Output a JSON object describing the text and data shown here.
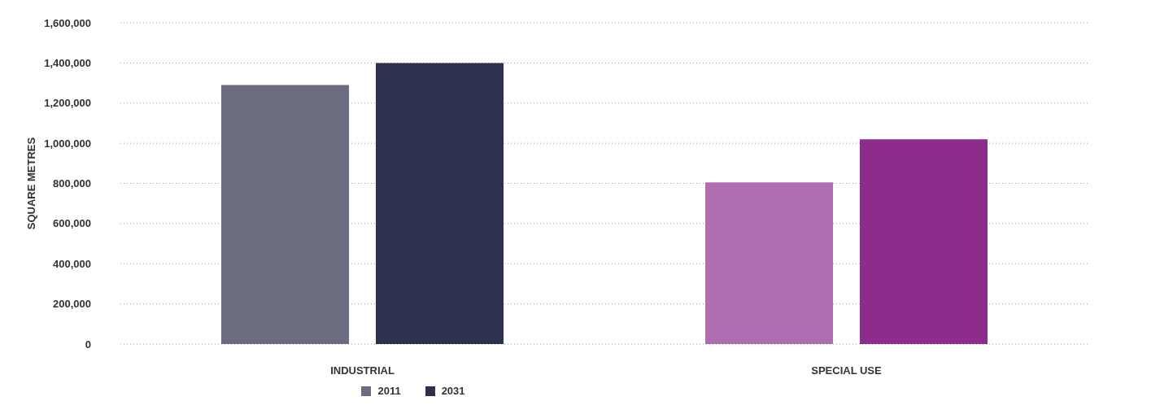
{
  "chart_data": {
    "type": "bar",
    "ylabel": "SQUARE METRES",
    "categories": [
      "INDUSTRIAL",
      "SPECIAL USE"
    ],
    "series": [
      {
        "name": "2011",
        "color": "#6c6c80",
        "colors": [
          "#6c6c80",
          "#b06eb0"
        ],
        "values": [
          1290000,
          805000
        ]
      },
      {
        "name": "2031",
        "color": "#2e314d",
        "colors": [
          "#2e314d",
          "#8e2c8e"
        ],
        "values": [
          1400000,
          1020000
        ]
      }
    ],
    "ylim": [
      0,
      1600000
    ],
    "yticks": [
      0,
      {
        "value": 200000,
        "label": "200,000"
      },
      {
        "value": 400000,
        "label": "400,000"
      },
      {
        "value": 600000,
        "label": "600,000"
      },
      {
        "value": 800000,
        "label": "800,000"
      },
      {
        "value": 1000000,
        "label": "1,000,000"
      },
      {
        "value": 1200000,
        "label": "1,200,000"
      },
      {
        "value": 1400000,
        "label": "1,400,000"
      },
      {
        "value": 1600000,
        "label": "1,600,000"
      }
    ],
    "grid": "y",
    "legend": "bottom"
  }
}
